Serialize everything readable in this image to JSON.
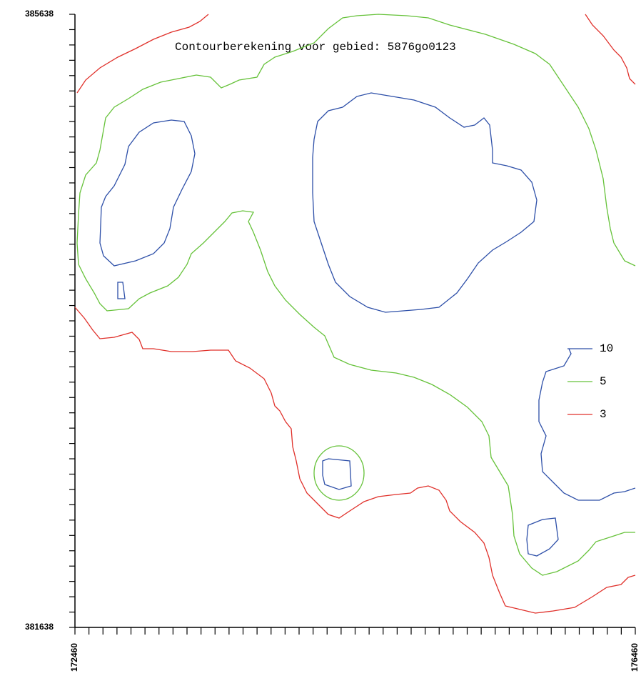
{
  "chart_data": {
    "type": "contour",
    "title": "Contourberekening voor gebied: 5876go0123",
    "levels": [
      10,
      5,
      3
    ],
    "colors": [
      "#2d4fa8",
      "#66c23a",
      "#e0302a"
    ],
    "xlim": [
      172460,
      176460
    ],
    "ylim": [
      381638,
      385638
    ],
    "xticks": [
      172460,
      {
        "value": 172560,
        "label": null
      },
      {
        "value": 172660,
        "label": null
      },
      {
        "value": 172760,
        "label": null
      },
      {
        "value": 172860,
        "label": null
      },
      {
        "value": 172960,
        "label": null
      },
      {
        "value": 173060,
        "label": null
      },
      {
        "value": 173160,
        "label": null
      },
      {
        "value": 173260,
        "label": null
      },
      {
        "value": 173360,
        "label": null
      },
      {
        "value": 173460,
        "label": null
      },
      {
        "value": 173560,
        "label": null
      },
      {
        "value": 173660,
        "label": null
      },
      {
        "value": 173760,
        "label": null
      },
      {
        "value": 173860,
        "label": null
      },
      {
        "value": 173960,
        "label": null
      },
      {
        "value": 174060,
        "label": null
      },
      {
        "value": 174160,
        "label": null
      },
      {
        "value": 174260,
        "label": null
      },
      {
        "value": 174360,
        "label": null
      },
      {
        "value": 174460,
        "label": null
      },
      {
        "value": 174560,
        "label": null
      },
      {
        "value": 174660,
        "label": null
      },
      {
        "value": 174760,
        "label": null
      },
      {
        "value": 174860,
        "label": null
      },
      {
        "value": 174960,
        "label": null
      },
      {
        "value": 175060,
        "label": null
      },
      {
        "value": 175160,
        "label": null
      },
      {
        "value": 175260,
        "label": null
      },
      {
        "value": 175360,
        "label": null
      },
      {
        "value": 175460,
        "label": null
      },
      {
        "value": 175560,
        "label": null
      },
      {
        "value": 175660,
        "label": null
      },
      {
        "value": 175760,
        "label": null
      },
      {
        "value": 175860,
        "label": null
      },
      {
        "value": 175960,
        "label": null
      },
      {
        "value": 176060,
        "label": null
      },
      {
        "value": 176160,
        "label": null
      },
      {
        "value": 176260,
        "label": null
      },
      {
        "value": 176360,
        "label": null
      },
      176460
    ],
    "yticks": [
      381638,
      {
        "value": 381738,
        "label": null
      },
      {
        "value": 381838,
        "label": null
      },
      {
        "value": 381938,
        "label": null
      },
      {
        "value": 382038,
        "label": null
      },
      {
        "value": 382138,
        "label": null
      },
      {
        "value": 382238,
        "label": null
      },
      {
        "value": 382338,
        "label": null
      },
      {
        "value": 382438,
        "label": null
      },
      {
        "value": 382538,
        "label": null
      },
      {
        "value": 382638,
        "label": null
      },
      {
        "value": 382738,
        "label": null
      },
      {
        "value": 382838,
        "label": null
      },
      {
        "value": 382938,
        "label": null
      },
      {
        "value": 383038,
        "label": null
      },
      {
        "value": 383138,
        "label": null
      },
      {
        "value": 383238,
        "label": null
      },
      {
        "value": 383338,
        "label": null
      },
      {
        "value": 383438,
        "label": null
      },
      {
        "value": 383538,
        "label": null
      },
      {
        "value": 383638,
        "label": null
      },
      {
        "value": 383738,
        "label": null
      },
      {
        "value": 383838,
        "label": null
      },
      {
        "value": 383938,
        "label": null
      },
      {
        "value": 384038,
        "label": null
      },
      {
        "value": 384138,
        "label": null
      },
      {
        "value": 384238,
        "label": null
      },
      {
        "value": 384338,
        "label": null
      },
      {
        "value": 384438,
        "label": null
      },
      {
        "value": 384538,
        "label": null
      },
      {
        "value": 384638,
        "label": null
      },
      {
        "value": 384738,
        "label": null
      },
      {
        "value": 384838,
        "label": null
      },
      {
        "value": 384938,
        "label": null
      },
      {
        "value": 385038,
        "label": null
      },
      {
        "value": 385138,
        "label": null
      },
      {
        "value": 385238,
        "label": null
      },
      {
        "value": 385338,
        "label": null
      },
      {
        "value": 385438,
        "label": null
      },
      {
        "value": 385538,
        "label": null
      },
      385638
    ]
  }
}
